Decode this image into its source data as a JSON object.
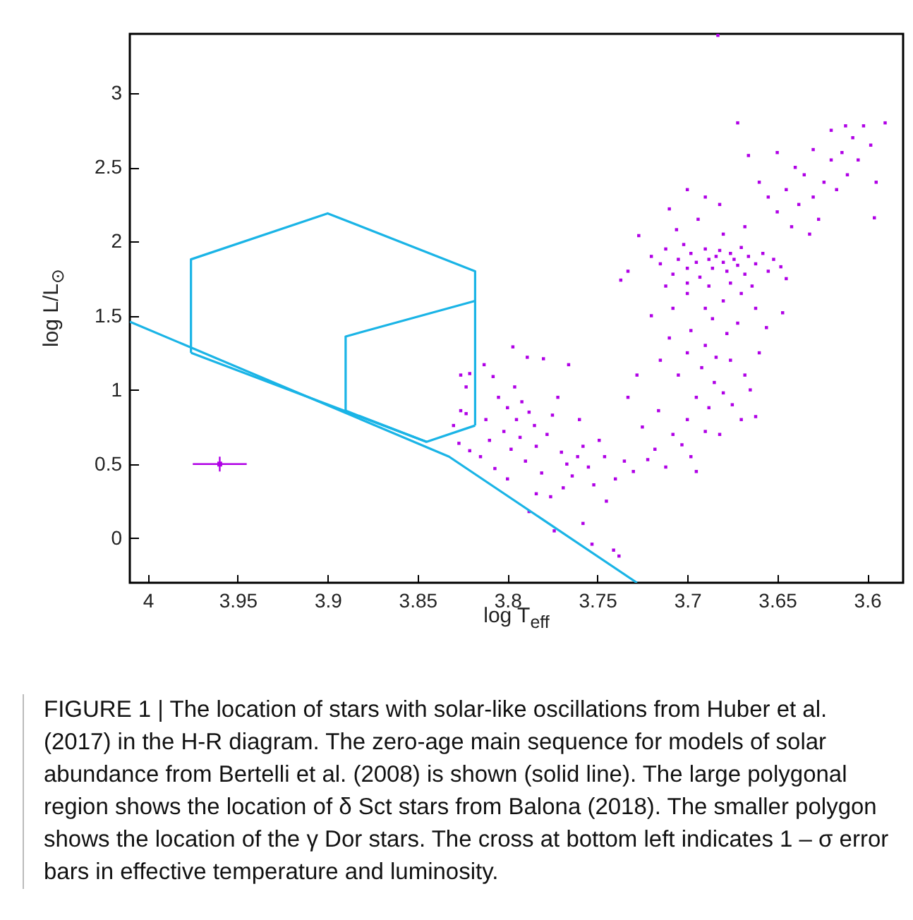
{
  "chart_data": {
    "type": "scatter",
    "xlabel": "log T$_{eff}$",
    "ylabel": "log L/L$_{⊙}$",
    "xlim": [
      4.01,
      3.58
    ],
    "ylim": [
      -0.3,
      3.4
    ],
    "xticks": [
      4,
      3.95,
      3.9,
      3.85,
      3.8,
      3.75,
      3.7,
      3.65,
      3.6
    ],
    "yticks": [
      0,
      0.5,
      1,
      1.5,
      2,
      2.5,
      3
    ],
    "grid": false,
    "annotations": [
      "FIGURE 1 | The location of stars with solar-like oscillations from Huber et al. (2017) in the H-R diagram. The zero-age main sequence for models of solar abundance from Bertelli et al. (2008) is shown (solid line). The large polygonal region shows the location of δ Sct stars from Balona (2018). The smaller polygon shows the location of the γ Dor stars. The cross at bottom left indicates 1 – σ error bars in effective temperature and luminosity."
    ],
    "series": [
      {
        "marker": "square",
        "color": "#b000e6",
        "x": [
          3.826,
          3.821,
          3.823,
          3.826,
          3.823,
          3.83,
          3.827,
          3.821,
          3.813,
          3.808,
          3.797,
          3.789,
          3.78,
          3.766,
          3.805,
          3.8,
          3.795,
          3.792,
          3.788,
          3.785,
          3.802,
          3.81,
          3.815,
          3.807,
          3.798,
          3.793,
          3.79,
          3.784,
          3.781,
          3.778,
          3.775,
          3.772,
          3.77,
          3.767,
          3.764,
          3.761,
          3.758,
          3.755,
          3.752,
          3.749,
          3.746,
          3.769,
          3.776,
          3.784,
          3.788,
          3.774,
          3.758,
          3.753,
          3.741,
          3.738,
          3.745,
          3.74,
          3.735,
          3.73,
          3.76,
          3.796,
          3.8,
          3.812,
          3.722,
          3.718,
          3.712,
          3.725,
          3.716,
          3.708,
          3.703,
          3.698,
          3.7,
          3.695,
          3.69,
          3.688,
          3.685,
          3.68,
          3.692,
          3.7,
          3.705,
          3.71,
          3.698,
          3.69,
          3.684,
          3.678,
          3.672,
          3.668,
          3.675,
          3.682,
          3.67,
          3.715,
          3.72,
          3.708,
          3.7,
          3.69,
          3.68,
          3.67,
          3.662,
          3.656,
          3.66,
          3.665,
          3.728,
          3.733,
          3.695,
          3.662,
          3.676,
          3.686,
          3.647,
          3.737,
          3.733,
          3.727,
          3.72,
          3.715,
          3.712,
          3.708,
          3.705,
          3.702,
          3.7,
          3.698,
          3.695,
          3.693,
          3.69,
          3.688,
          3.686,
          3.684,
          3.682,
          3.68,
          3.678,
          3.676,
          3.674,
          3.672,
          3.67,
          3.668,
          3.666,
          3.662,
          3.658,
          3.655,
          3.652,
          3.648,
          3.645,
          3.712,
          3.7,
          3.688,
          3.676,
          3.664,
          3.706,
          3.694,
          3.68,
          3.668,
          3.69,
          3.7,
          3.682,
          3.71,
          3.672,
          3.666,
          3.66,
          3.655,
          3.65,
          3.645,
          3.642,
          3.638,
          3.635,
          3.63,
          3.627,
          3.624,
          3.62,
          3.617,
          3.614,
          3.611,
          3.608,
          3.605,
          3.602,
          3.598,
          3.595,
          3.596,
          3.59,
          3.612,
          3.62,
          3.63,
          3.64,
          3.65,
          3.632,
          3.683
        ],
        "values": [
          1.1,
          1.11,
          1.02,
          0.86,
          0.84,
          0.76,
          0.64,
          0.59,
          1.17,
          1.09,
          1.29,
          1.22,
          1.21,
          1.17,
          0.95,
          0.88,
          0.8,
          0.92,
          0.85,
          0.76,
          0.72,
          0.66,
          0.55,
          0.47,
          0.6,
          0.68,
          0.52,
          0.62,
          0.44,
          0.7,
          0.83,
          0.95,
          0.58,
          0.5,
          0.42,
          0.55,
          0.62,
          0.48,
          0.36,
          0.66,
          0.55,
          0.34,
          0.28,
          0.3,
          0.18,
          0.05,
          0.1,
          -0.04,
          -0.08,
          -0.12,
          0.25,
          0.4,
          0.52,
          0.45,
          0.8,
          1.02,
          0.4,
          0.8,
          0.53,
          0.6,
          0.48,
          0.75,
          0.86,
          0.7,
          0.63,
          0.55,
          0.8,
          0.95,
          0.72,
          0.88,
          1.05,
          0.98,
          1.15,
          1.25,
          1.1,
          1.35,
          1.4,
          1.3,
          1.22,
          1.38,
          1.45,
          1.1,
          0.9,
          0.7,
          0.8,
          1.2,
          1.5,
          1.55,
          1.65,
          1.55,
          1.6,
          1.65,
          1.55,
          1.42,
          1.25,
          1.0,
          1.1,
          0.95,
          0.45,
          0.82,
          1.2,
          1.48,
          1.52,
          1.74,
          1.8,
          2.04,
          1.9,
          1.85,
          1.95,
          1.78,
          1.88,
          1.98,
          1.82,
          1.92,
          1.86,
          1.76,
          1.95,
          1.88,
          1.82,
          1.9,
          1.94,
          1.86,
          1.8,
          1.92,
          1.88,
          1.84,
          1.96,
          1.78,
          1.9,
          1.85,
          1.92,
          1.8,
          1.88,
          1.83,
          1.75,
          1.7,
          1.72,
          1.7,
          1.72,
          1.7,
          2.08,
          2.15,
          2.05,
          2.1,
          2.3,
          2.35,
          2.25,
          2.22,
          2.8,
          2.58,
          2.4,
          2.3,
          2.2,
          2.35,
          2.1,
          2.25,
          2.45,
          2.3,
          2.15,
          2.4,
          2.55,
          2.35,
          2.6,
          2.45,
          2.7,
          2.55,
          2.78,
          2.65,
          2.4,
          2.16,
          2.8,
          2.78,
          2.75,
          2.62,
          2.5,
          2.6,
          2.05,
          3.39
        ]
      },
      {
        "type": "line",
        "color": "#1ab4e6",
        "x": [
          4.01,
          3.8325,
          3.728
        ],
        "values": [
          1.46,
          0.55,
          -0.3
        ]
      },
      {
        "type": "line",
        "color": "#1ab4e6",
        "x": [
          3.976,
          3.976,
          3.9,
          3.818,
          3.818
        ],
        "values": [
          1.25,
          1.88,
          2.19,
          1.8,
          0.76
        ]
      },
      {
        "type": "line",
        "color": "#1ab4e6",
        "x": [
          3.976,
          3.845,
          3.818
        ],
        "values": [
          1.25,
          0.65,
          0.76
        ]
      },
      {
        "type": "line",
        "color": "#1ab4e6",
        "x": [
          3.89,
          3.89,
          3.818
        ],
        "values": [
          0.86,
          1.36,
          1.6
        ]
      },
      {
        "type": "line",
        "color": "#1ab4e6",
        "x": [
          3.89,
          3.845
        ],
        "values": [
          0.86,
          0.65
        ]
      },
      {
        "marker": "square",
        "color": "#b000e6",
        "x": [
          3.96
        ],
        "values": [
          0.5
        ],
        "errors": [
          0.05
        ],
        "xerrors": [
          0.015
        ]
      }
    ]
  }
}
